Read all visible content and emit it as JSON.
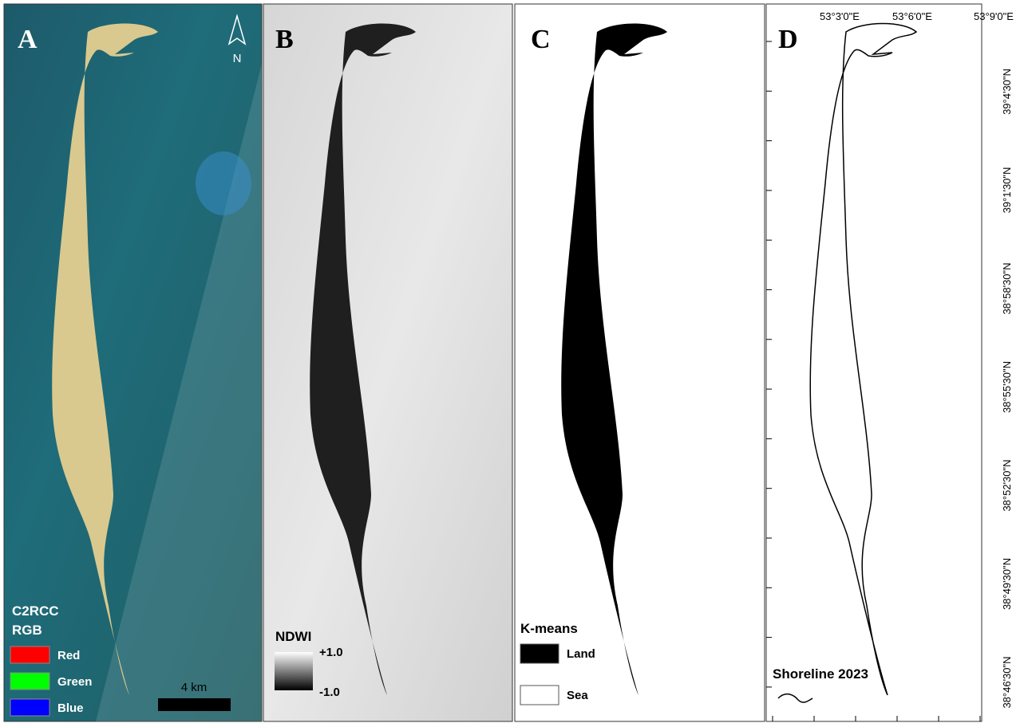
{
  "panel_a": {
    "label": "A",
    "north_arrow": "N",
    "legend_title_1": "C2RCC",
    "legend_title_2": "RGB",
    "legend": [
      {
        "name": "Red",
        "color": "#ff0000"
      },
      {
        "name": "Green",
        "color": "#00ff00"
      },
      {
        "name": "Blue",
        "color": "#0000ff"
      }
    ],
    "scale_bar": "4 km"
  },
  "panel_b": {
    "label": "B",
    "legend_title": "NDWI",
    "max_label": "+1.0",
    "min_label": "-1.0"
  },
  "panel_c": {
    "label": "C",
    "legend_title": "K-means",
    "legend": [
      {
        "name": "Land",
        "color": "#000000"
      },
      {
        "name": "Sea",
        "color": "#ffffff"
      }
    ]
  },
  "panel_d": {
    "label": "D",
    "legend_title": "Shoreline 2023",
    "longitude_labels": [
      "53°3'0\"E",
      "53°6'0\"E",
      "53°9'0\"E"
    ],
    "latitude_labels": [
      "39°4'30\"N",
      "39°1'30\"N",
      "38°58'30\"N",
      "38°55'30\"N",
      "38°52'30\"N",
      "38°49'30\"N",
      "38°46'30\"N"
    ]
  }
}
